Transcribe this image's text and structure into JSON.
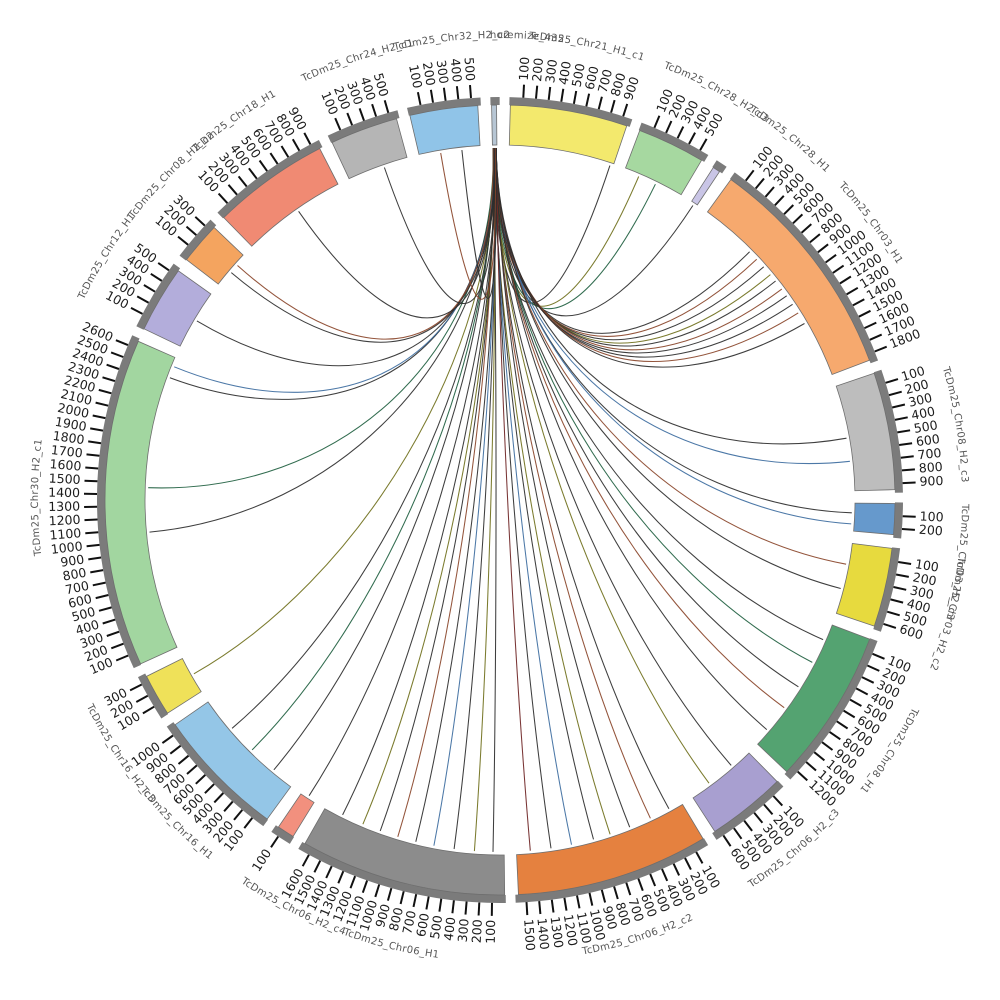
{
  "chart_data": {
    "type": "chord",
    "title": "",
    "layout": {
      "background": "#ffffff",
      "direction": "clockwise",
      "start_deg": 1.5,
      "gap_deg": 2.0,
      "tick_interval": 100,
      "cap_color": "#7b7b7b",
      "legend": "none",
      "grid": "off"
    },
    "link_source": "horemize_435",
    "link_palette": {
      "dark": "#2e2e2e",
      "olive": "#70701c",
      "blue": "#3d6da0",
      "brown": "#8a452a",
      "green": "#206040",
      "maroon": "#6e2424"
    },
    "segments": [
      {
        "name": "TcDm25_Chr21_H1_c1",
        "color": "#f3e96d",
        "size": 950,
        "ticks": [
          100,
          200,
          300,
          400,
          500,
          600,
          700,
          800,
          900
        ]
      },
      {
        "name": "TcDm25_Chr28_H2_c3",
        "color": "#a6d8a0",
        "size": 550,
        "ticks": [
          100,
          200,
          300,
          400,
          500
        ]
      },
      {
        "name": "TcDm25_Chr28_H1",
        "color": "#c9c5e6",
        "size": 60,
        "ticks": []
      },
      {
        "name": "TcDm25_Chr03_H1",
        "color": "#f6a96e",
        "size": 1850,
        "ticks": [
          100,
          200,
          300,
          400,
          500,
          600,
          700,
          800,
          900,
          1000,
          1100,
          1200,
          1300,
          1400,
          1500,
          1600,
          1700,
          1800
        ]
      },
      {
        "name": "TcDm25_Chr08_H2_c3",
        "color": "#bdbdbd",
        "size": 950,
        "ticks": [
          100,
          200,
          300,
          400,
          500,
          600,
          700,
          800,
          900
        ]
      },
      {
        "name": "TcDm25_Chr03_H2_c3",
        "color": "#6699cc",
        "size": 250,
        "ticks": [
          100,
          200
        ]
      },
      {
        "name": "TcDm25_Chr03_H2_c2",
        "color": "#e7da3e",
        "size": 640,
        "ticks": [
          100,
          200,
          300,
          400,
          500,
          600
        ]
      },
      {
        "name": "TcDm25_Chr08_H1",
        "color": "#54a371",
        "size": 1260,
        "ticks": [
          100,
          200,
          300,
          400,
          500,
          600,
          700,
          800,
          900,
          1000,
          1100,
          1200
        ]
      },
      {
        "name": "TcDm25_Chr06_H2_c3",
        "color": "#a89fd0",
        "size": 640,
        "ticks": [
          100,
          200,
          300,
          400,
          500,
          600
        ]
      },
      {
        "name": "TcDm25_Chr06_H2_c2",
        "color": "#e5813f",
        "size": 1560,
        "ticks": [
          100,
          200,
          300,
          400,
          500,
          600,
          700,
          800,
          900,
          1000,
          1100,
          1200,
          1300,
          1400,
          1500
        ]
      },
      {
        "name": "TcDm25_Chr06_H1",
        "color": "#8c8c8c",
        "size": 1670,
        "ticks": [
          100,
          200,
          300,
          400,
          500,
          600,
          700,
          800,
          900,
          1000,
          1100,
          1200,
          1300,
          1400,
          1500,
          1600
        ]
      },
      {
        "name": "TcDm25_Chr06_H2_c4",
        "color": "#f2907e",
        "size": 140,
        "ticks": [
          100
        ]
      },
      {
        "name": "TcDm25_Chr16_H1",
        "color": "#94c6e7",
        "size": 1060,
        "ticks": [
          100,
          200,
          300,
          400,
          500,
          600,
          700,
          800,
          900,
          1000
        ]
      },
      {
        "name": "TcDm25_Chr16_H2_c3",
        "color": "#efe159",
        "size": 340,
        "ticks": [
          100,
          200,
          300
        ]
      },
      {
        "name": "TcDm25_Chr30_H2_c1",
        "color": "#a2d6a0",
        "size": 2660,
        "ticks": [
          100,
          200,
          300,
          400,
          500,
          600,
          700,
          800,
          900,
          1000,
          1100,
          1200,
          1300,
          1400,
          1500,
          1600,
          1700,
          1800,
          1900,
          2000,
          2100,
          2200,
          2300,
          2400,
          2500,
          2600
        ]
      },
      {
        "name": "TcDm25_Chr12_H1",
        "color": "#b3addb",
        "size": 540,
        "ticks": [
          100,
          200,
          300,
          400,
          500
        ]
      },
      {
        "name": "TcDm25_Chr08_H2_c2",
        "color": "#f4a45f",
        "size": 340,
        "ticks": [
          100,
          200,
          300
        ]
      },
      {
        "name": "TcDm25_Chr18_H1",
        "color": "#f08a73",
        "size": 950,
        "ticks": [
          100,
          200,
          300,
          400,
          500,
          600,
          700,
          800,
          900
        ]
      },
      {
        "name": "TcDm25_Chr24_H2_c1",
        "color": "#b5b5b5",
        "size": 550,
        "ticks": [
          100,
          200,
          300,
          400,
          500
        ]
      },
      {
        "name": "TcDm25_Chr32_H2_c2",
        "color": "#90c4e8",
        "size": 550,
        "ticks": [
          100,
          200,
          300,
          400,
          500
        ]
      },
      {
        "name": "horemize_435",
        "color": "#b7c6d4",
        "size": 40,
        "ticks": []
      }
    ],
    "links": [
      {
        "t": "TcDm25_Chr21_H1_c1",
        "f": 0.97,
        "c": "#2e2e2e"
      },
      {
        "t": "TcDm25_Chr28_H2_c3",
        "f": 0.25,
        "c": "#70701c"
      },
      {
        "t": "TcDm25_Chr28_H2_c3",
        "f": 0.55,
        "c": "#206040"
      },
      {
        "t": "TcDm25_Chr28_H1",
        "f": 0.5,
        "c": "#2e2e2e"
      },
      {
        "t": "TcDm25_Chr03_H1",
        "f": 0.28,
        "c": "#2e2e2e"
      },
      {
        "t": "TcDm25_Chr03_H1",
        "f": 0.33,
        "c": "#8a452a"
      },
      {
        "t": "TcDm25_Chr03_H1",
        "f": 0.38,
        "c": "#2e2e2e"
      },
      {
        "t": "TcDm25_Chr03_H1",
        "f": 0.43,
        "c": "#70701c"
      },
      {
        "t": "TcDm25_Chr03_H1",
        "f": 0.47,
        "c": "#2e2e2e"
      },
      {
        "t": "TcDm25_Chr03_H1",
        "f": 0.52,
        "c": "#8a452a"
      },
      {
        "t": "TcDm25_Chr03_H1",
        "f": 0.56,
        "c": "#2e2e2e"
      },
      {
        "t": "TcDm25_Chr03_H1",
        "f": 0.61,
        "c": "#2e2e2e"
      },
      {
        "t": "TcDm25_Chr03_H1",
        "f": 0.66,
        "c": "#8a452a"
      },
      {
        "t": "TcDm25_Chr03_H1",
        "f": 0.72,
        "c": "#2e2e2e"
      },
      {
        "t": "TcDm25_Chr08_H2_c3",
        "f": 0.5,
        "c": "#2e2e2e"
      },
      {
        "t": "TcDm25_Chr08_H2_c3",
        "f": 0.72,
        "c": "#3d6da0"
      },
      {
        "t": "TcDm25_Chr03_H2_c3",
        "f": 0.35,
        "c": "#2e2e2e"
      },
      {
        "t": "TcDm25_Chr03_H2_c3",
        "f": 0.75,
        "c": "#3d6da0"
      },
      {
        "t": "TcDm25_Chr03_H2_c2",
        "f": 0.3,
        "c": "#8a452a"
      },
      {
        "t": "TcDm25_Chr03_H2_c2",
        "f": 0.65,
        "c": "#2e2e2e"
      },
      {
        "t": "TcDm25_Chr08_H1",
        "f": 0.12,
        "c": "#2e2e2e"
      },
      {
        "t": "TcDm25_Chr08_H1",
        "f": 0.3,
        "c": "#206040"
      },
      {
        "t": "TcDm25_Chr08_H1",
        "f": 0.5,
        "c": "#2e2e2e"
      },
      {
        "t": "TcDm25_Chr08_H1",
        "f": 0.68,
        "c": "#8a452a"
      },
      {
        "t": "TcDm25_Chr08_H1",
        "f": 0.88,
        "c": "#2e2e2e"
      },
      {
        "t": "TcDm25_Chr06_H2_c3",
        "f": 0.3,
        "c": "#2e2e2e"
      },
      {
        "t": "TcDm25_Chr06_H2_c3",
        "f": 0.7,
        "c": "#70701c"
      },
      {
        "t": "TcDm25_Chr06_H2_c2",
        "f": 0.08,
        "c": "#2e2e2e"
      },
      {
        "t": "TcDm25_Chr06_H2_c2",
        "f": 0.2,
        "c": "#8a452a"
      },
      {
        "t": "TcDm25_Chr06_H2_c2",
        "f": 0.33,
        "c": "#2e2e2e"
      },
      {
        "t": "TcDm25_Chr06_H2_c2",
        "f": 0.45,
        "c": "#70701c"
      },
      {
        "t": "TcDm25_Chr06_H2_c2",
        "f": 0.55,
        "c": "#2e2e2e"
      },
      {
        "t": "TcDm25_Chr06_H2_c2",
        "f": 0.68,
        "c": "#3d6da0"
      },
      {
        "t": "TcDm25_Chr06_H2_c2",
        "f": 0.8,
        "c": "#2e2e2e"
      },
      {
        "t": "TcDm25_Chr06_H2_c2",
        "f": 0.92,
        "c": "#6e2424"
      },
      {
        "t": "TcDm25_Chr06_H1",
        "f": 0.06,
        "c": "#2e2e2e"
      },
      {
        "t": "TcDm25_Chr06_H1",
        "f": 0.16,
        "c": "#70701c"
      },
      {
        "t": "TcDm25_Chr06_H1",
        "f": 0.27,
        "c": "#2e2e2e"
      },
      {
        "t": "TcDm25_Chr06_H1",
        "f": 0.38,
        "c": "#3d6da0"
      },
      {
        "t": "TcDm25_Chr06_H1",
        "f": 0.48,
        "c": "#2e2e2e"
      },
      {
        "t": "TcDm25_Chr06_H1",
        "f": 0.58,
        "c": "#8a452a"
      },
      {
        "t": "TcDm25_Chr06_H1",
        "f": 0.68,
        "c": "#2e2e2e"
      },
      {
        "t": "TcDm25_Chr06_H1",
        "f": 0.78,
        "c": "#70701c"
      },
      {
        "t": "TcDm25_Chr06_H1",
        "f": 0.9,
        "c": "#2e2e2e"
      },
      {
        "t": "TcDm25_Chr06_H2_c4",
        "f": 0.5,
        "c": "#2e2e2e"
      },
      {
        "t": "TcDm25_Chr16_H1",
        "f": 0.2,
        "c": "#2e2e2e"
      },
      {
        "t": "TcDm25_Chr16_H1",
        "f": 0.45,
        "c": "#206040"
      },
      {
        "t": "TcDm25_Chr16_H1",
        "f": 0.7,
        "c": "#2e2e2e"
      },
      {
        "t": "TcDm25_Chr16_H2_c3",
        "f": 0.5,
        "c": "#70701c"
      },
      {
        "t": "TcDm25_Chr30_H2_c1",
        "f": 0.4,
        "c": "#2e2e2e"
      },
      {
        "t": "TcDm25_Chr30_H2_c1",
        "f": 0.55,
        "c": "#206040"
      },
      {
        "t": "TcDm25_Chr30_H2_c1",
        "f": 0.93,
        "c": "#2e2e2e"
      },
      {
        "t": "TcDm25_Chr30_H2_c1",
        "f": 0.97,
        "c": "#3d6da0"
      },
      {
        "t": "TcDm25_Chr12_H1",
        "f": 0.5,
        "c": "#2e2e2e"
      },
      {
        "t": "TcDm25_Chr08_H2_c2",
        "f": 0.45,
        "c": "#2e2e2e"
      },
      {
        "t": "TcDm25_Chr08_H2_c2",
        "f": 0.7,
        "c": "#8a452a"
      },
      {
        "t": "TcDm25_Chr18_H1",
        "f": 0.55,
        "c": "#2e2e2e"
      },
      {
        "t": "TcDm25_Chr24_H2_c1",
        "f": 0.6,
        "c": "#2e2e2e"
      },
      {
        "t": "TcDm25_Chr32_H2_c2",
        "f": 0.35,
        "c": "#8a452a"
      },
      {
        "t": "TcDm25_Chr32_H2_c2",
        "f": 0.7,
        "c": "#2e2e2e"
      }
    ]
  }
}
